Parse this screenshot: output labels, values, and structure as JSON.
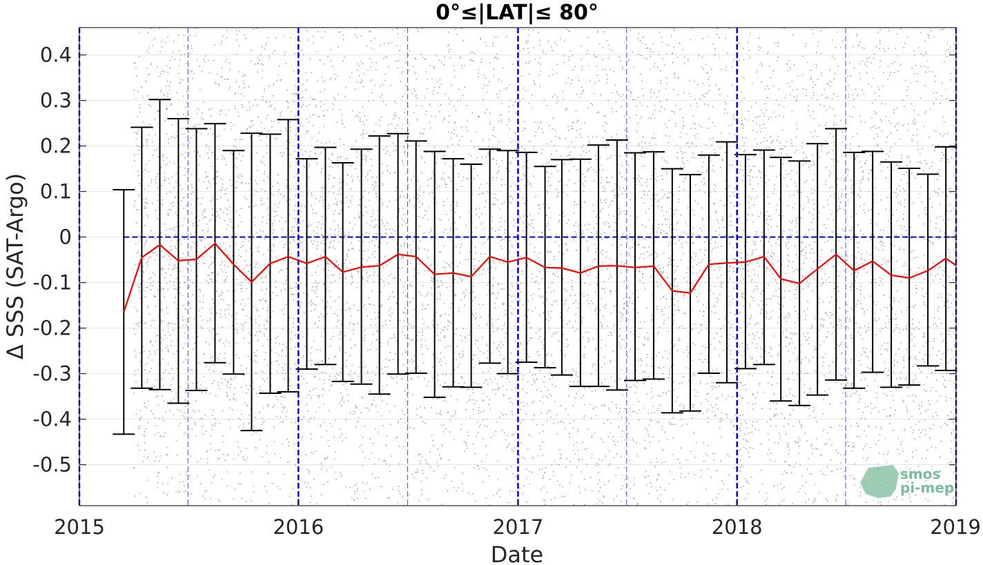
{
  "chart_data": {
    "type": "scatter",
    "title": "0°≤|LAT|≤ 80°",
    "xlabel": "Date",
    "ylabel": "Δ SSS (SAT-Argo)",
    "xlim": [
      "2015-01-01",
      "2019-01-01"
    ],
    "ylim": [
      -0.59,
      0.46
    ],
    "x_ticks": [
      "2015",
      "2016",
      "2017",
      "2018",
      "2019"
    ],
    "y_ticks": [
      "0.4",
      "0.3",
      "0.2",
      "0.1",
      "0",
      "-0.1",
      "-0.2",
      "-0.3",
      "-0.4",
      "-0.5"
    ],
    "grid": true,
    "legend": "none",
    "watermark": [
      "smos",
      "pi-mep"
    ],
    "colors": {
      "scatter": "#8c8c8c",
      "mean_line": "#ff0000",
      "error_bars": "#000000",
      "reference_lines": "#0000dd"
    },
    "reference_lines": {
      "zero_y": 0,
      "year_boundaries": [
        "2015-01-01",
        "2016-01-01",
        "2017-01-01",
        "2018-01-01",
        "2019-01-01"
      ],
      "half_years": [
        "2015-07-01",
        "2016-07-01",
        "2017-07-01",
        "2018-07-01"
      ]
    },
    "scatter_cloud": {
      "x_start": "2015-04-01",
      "x_end": "2019-01-01",
      "y_min": -0.59,
      "y_max": 0.46
    },
    "series": [
      {
        "name": "",
        "style": "mean with error bars",
        "x": [
          "2015-03-16",
          "2015-04-15",
          "2015-05-15",
          "2015-06-15",
          "2015-07-15",
          "2015-08-15",
          "2015-09-15",
          "2015-10-15",
          "2015-11-15",
          "2015-12-15",
          "2016-01-15",
          "2016-02-15",
          "2016-03-15",
          "2016-04-15",
          "2016-05-15",
          "2016-06-15",
          "2016-07-15",
          "2016-08-15",
          "2016-09-15",
          "2016-10-15",
          "2016-11-15",
          "2016-12-15",
          "2017-01-15",
          "2017-02-15",
          "2017-03-15",
          "2017-04-15",
          "2017-05-15",
          "2017-06-15",
          "2017-07-15",
          "2017-08-15",
          "2017-09-15",
          "2017-10-15",
          "2017-11-15",
          "2017-12-15",
          "2018-01-15",
          "2018-02-15",
          "2018-03-15",
          "2018-04-15",
          "2018-05-15",
          "2018-06-15",
          "2018-07-15",
          "2018-08-15",
          "2018-09-15",
          "2018-10-15",
          "2018-11-15",
          "2018-12-15"
        ],
        "mean": [
          -0.165,
          -0.045,
          -0.017,
          -0.052,
          -0.049,
          -0.014,
          -0.06,
          -0.099,
          -0.058,
          -0.043,
          -0.058,
          -0.043,
          -0.077,
          -0.066,
          -0.063,
          -0.038,
          -0.043,
          -0.082,
          -0.079,
          -0.087,
          -0.043,
          -0.055,
          -0.045,
          -0.067,
          -0.068,
          -0.079,
          -0.064,
          -0.063,
          -0.067,
          -0.064,
          -0.118,
          -0.123,
          -0.06,
          -0.057,
          -0.055,
          -0.043,
          -0.092,
          -0.102,
          -0.07,
          -0.038,
          -0.074,
          -0.053,
          -0.084,
          -0.09,
          -0.074,
          -0.047
        ],
        "upper": [
          0.104,
          0.241,
          0.302,
          0.26,
          0.238,
          0.249,
          0.19,
          0.228,
          0.226,
          0.258,
          0.172,
          0.197,
          0.163,
          0.193,
          0.222,
          0.227,
          0.211,
          0.188,
          0.172,
          0.16,
          0.193,
          0.19,
          0.186,
          0.155,
          0.17,
          0.171,
          0.202,
          0.213,
          0.185,
          0.187,
          0.15,
          0.137,
          0.18,
          0.209,
          0.181,
          0.191,
          0.175,
          0.167,
          0.205,
          0.238,
          0.186,
          0.188,
          0.165,
          0.151,
          0.138,
          0.198
        ],
        "lower": [
          -0.433,
          -0.332,
          -0.335,
          -0.365,
          -0.337,
          -0.276,
          -0.301,
          -0.425,
          -0.343,
          -0.34,
          -0.29,
          -0.28,
          -0.317,
          -0.323,
          -0.345,
          -0.301,
          -0.299,
          -0.352,
          -0.329,
          -0.33,
          -0.277,
          -0.3,
          -0.275,
          -0.287,
          -0.303,
          -0.328,
          -0.328,
          -0.336,
          -0.315,
          -0.312,
          -0.386,
          -0.382,
          -0.299,
          -0.32,
          -0.289,
          -0.28,
          -0.36,
          -0.37,
          -0.347,
          -0.314,
          -0.332,
          -0.297,
          -0.33,
          -0.325,
          -0.283,
          -0.293
        ]
      }
    ]
  }
}
